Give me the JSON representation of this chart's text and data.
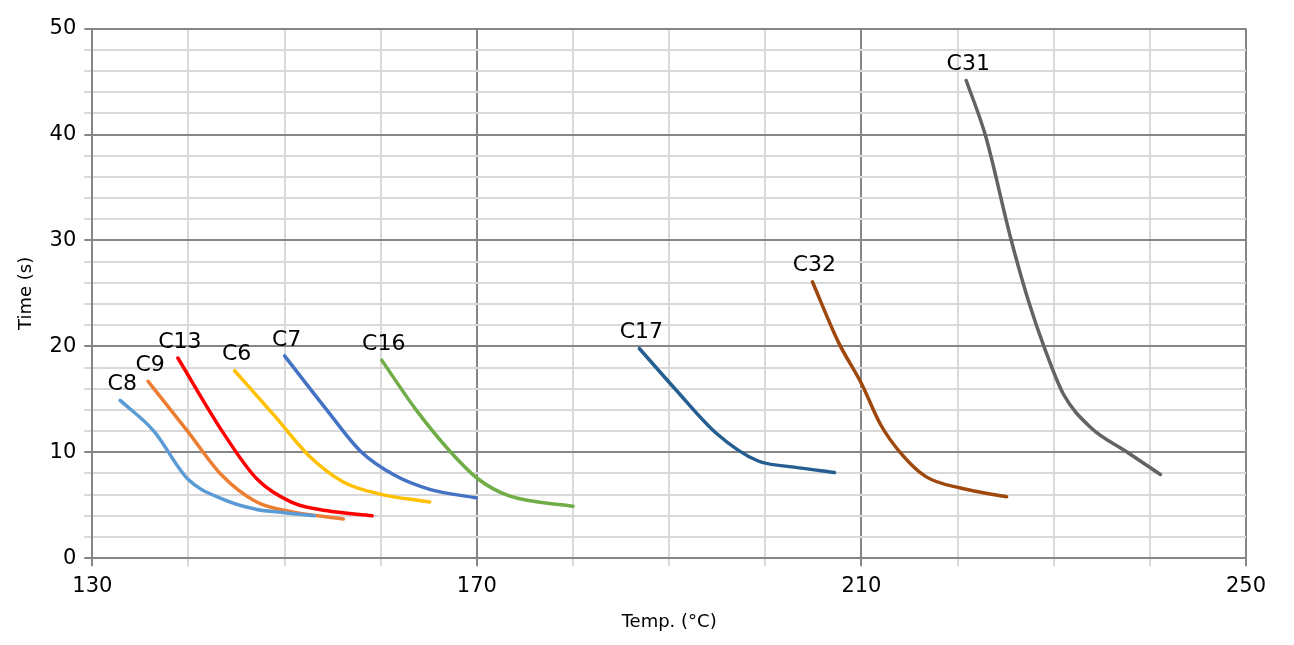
{
  "chart_data": {
    "type": "line",
    "xlabel": "Temp. (°C)",
    "ylabel": "Time (s)",
    "xlim": [
      130,
      250
    ],
    "xticks": [
      130,
      {
        "value": 140,
        "label": null
      },
      {
        "value": 150,
        "label": null
      },
      {
        "value": 160,
        "label": null
      },
      170,
      {
        "value": 180,
        "label": null
      },
      {
        "value": 190,
        "label": null
      },
      {
        "value": 200,
        "label": null
      },
      210,
      {
        "value": 220,
        "label": null
      },
      {
        "value": 230,
        "label": null
      },
      {
        "value": 240,
        "label": null
      },
      250
    ],
    "ylim": [
      0,
      50
    ],
    "yticks": [
      0,
      {
        "value": 2,
        "label": null
      },
      {
        "value": 4,
        "label": null
      },
      {
        "value": 6,
        "label": null
      },
      {
        "value": 8,
        "label": null
      },
      10,
      {
        "value": 12,
        "label": null
      },
      {
        "value": 14,
        "label": null
      },
      {
        "value": 16,
        "label": null
      },
      {
        "value": 18,
        "label": null
      },
      20,
      {
        "value": 22,
        "label": null
      },
      {
        "value": 24,
        "label": null
      },
      {
        "value": 26,
        "label": null
      },
      {
        "value": 28,
        "label": null
      },
      30,
      {
        "value": 32,
        "label": null
      },
      {
        "value": 34,
        "label": null
      },
      {
        "value": 36,
        "label": null
      },
      {
        "value": 38,
        "label": null
      },
      40,
      {
        "value": 42,
        "label": null
      },
      {
        "value": 44,
        "label": null
      },
      {
        "value": 46,
        "label": null
      },
      {
        "value": 48,
        "label": null
      },
      50
    ],
    "grid": true,
    "legend": false,
    "marker": "none",
    "line_style": "solid",
    "series": [
      {
        "name": "C8",
        "color": "#5b9bd5",
        "x": [
          132.9,
          136.4,
          139.9,
          143.5,
          147.1,
          150,
          153.1
        ],
        "values": [
          14.9,
          12,
          7.5,
          5.6,
          4.6,
          4.3,
          4.0
        ]
      },
      {
        "name": "C9",
        "color": "#ed7d31",
        "x": [
          135.8,
          139.9,
          143.5,
          147.1,
          150.7,
          156.1
        ],
        "values": [
          16.7,
          12,
          7.8,
          5.3,
          4.4,
          3.7
        ]
      },
      {
        "name": "C13",
        "color": "#ff0000",
        "x": [
          138.9,
          143.5,
          147.1,
          150.7,
          154.3,
          159.1
        ],
        "values": [
          18.9,
          12,
          7.5,
          5.3,
          4.5,
          4.0
        ]
      },
      {
        "name": "C6",
        "color": "#ffc000",
        "x": [
          144.8,
          148.9,
          152.5,
          156.1,
          159.7,
          165.1
        ],
        "values": [
          17.7,
          13.5,
          9.7,
          7.2,
          6.1,
          5.3
        ]
      },
      {
        "name": "C7",
        "color": "#4472c4",
        "x": [
          150,
          154.3,
          157.9,
          161.5,
          165.1,
          169.9
        ],
        "values": [
          19.1,
          14.1,
          10.1,
          7.8,
          6.5,
          5.7
        ]
      },
      {
        "name": "C16",
        "color": "#70ad47",
        "x": [
          160.1,
          163.6,
          167.2,
          170.1,
          173.3,
          180
        ],
        "values": [
          18.7,
          14.1,
          10.1,
          7.5,
          5.9,
          4.9
        ]
      },
      {
        "name": "C17",
        "color": "#255e91",
        "x": [
          186.9,
          190.6,
          194.9,
          199.2,
          203,
          207.2
        ],
        "values": [
          19.8,
          16,
          11.8,
          9.2,
          8.6,
          8.1
        ]
      },
      {
        "name": "C32",
        "color": "#9e480e",
        "x": [
          204.9,
          207.6,
          210,
          212,
          214.2,
          216.7,
          220.4,
          225.1
        ],
        "values": [
          26.1,
          20.4,
          16.5,
          12.6,
          9.8,
          7.7,
          6.6,
          5.8
        ]
      },
      {
        "name": "C31",
        "color": "#636363",
        "x": [
          220.9,
          222.9,
          225.5,
          227.3,
          229.1,
          231,
          233.9,
          237.5,
          241.1
        ],
        "values": [
          45.1,
          39.9,
          30.3,
          24.5,
          19.7,
          15.5,
          12.3,
          10.1,
          7.9
        ]
      }
    ]
  }
}
